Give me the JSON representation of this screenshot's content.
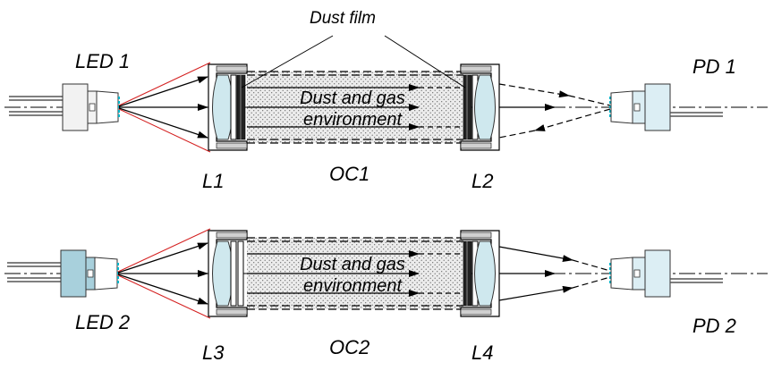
{
  "labels": {
    "dust_film": "Dust film",
    "led1": "LED 1",
    "pd1": "PD 1",
    "l1": "L1",
    "oc1": "OC1",
    "l2": "L2",
    "led2": "LED 2",
    "pd2": "PD 2",
    "l3": "L3",
    "oc2": "OC2",
    "l4": "L4",
    "env1_line1": "Dust and gas",
    "env1_line2": "environment",
    "env2_line1": "Dust and gas",
    "env2_line2": "environment"
  },
  "colors": {
    "led1_body": "#f2f2f2",
    "led2_body": "#a8d0dc",
    "pd_body": "#dceef4",
    "lens": "#cfe8ee",
    "chamber_fill": "#e6e6e6",
    "cone_lines": "#d42020",
    "lens_face": "#00b4c8"
  }
}
